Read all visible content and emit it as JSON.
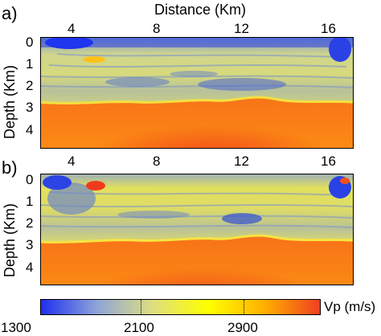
{
  "figure": {
    "top_axis_title": "Distance (Km)",
    "y_axis_title": "Depth (Km)",
    "panels": [
      {
        "label": "a)",
        "x_ticks": [
          "4",
          "8",
          "12",
          "16"
        ],
        "y_ticks": [
          "0",
          "1",
          "2",
          "3",
          "4"
        ]
      },
      {
        "label": "b)",
        "x_ticks": [
          "4",
          "8",
          "12",
          "16"
        ],
        "y_ticks": [
          "0",
          "1",
          "2",
          "3",
          "4"
        ]
      }
    ],
    "colorbar": {
      "unit_label": "Vp (m/s)",
      "ticks": [
        "1300",
        "2100",
        "2900"
      ],
      "min": 1300,
      "max": 3700,
      "colors": [
        "#1f2ff0",
        "#8ea4d8",
        "#dede80",
        "#ffff00",
        "#ffb000",
        "#f04020"
      ]
    }
  }
}
